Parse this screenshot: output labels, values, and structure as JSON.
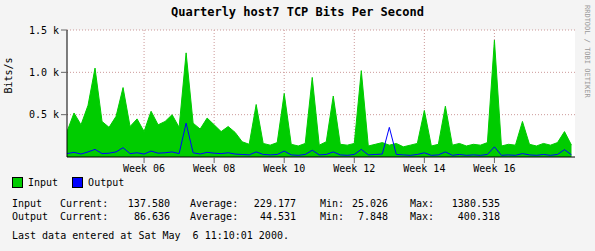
{
  "chart_data": {
    "type": "area",
    "title": "Quarterly host7 TCP Bits Per Second",
    "y_label": "Bits/s",
    "x": [
      3.8,
      4,
      4.2,
      4.4,
      4.6,
      4.8,
      5,
      5.2,
      5.4,
      5.6,
      5.8,
      6,
      6.2,
      6.4,
      6.6,
      6.8,
      7,
      7.2,
      7.4,
      7.6,
      7.8,
      8,
      8.2,
      8.4,
      8.6,
      8.8,
      9,
      9.2,
      9.4,
      9.6,
      9.8,
      10,
      10.2,
      10.4,
      10.6,
      10.8,
      11,
      11.2,
      11.4,
      11.6,
      11.8,
      12,
      12.2,
      12.4,
      12.6,
      12.8,
      13,
      13.2,
      13.4,
      13.6,
      13.8,
      14,
      14.2,
      14.4,
      14.6,
      14.8,
      15,
      15.2,
      15.4,
      15.6,
      15.8,
      16,
      16.2,
      16.4,
      16.6,
      16.8,
      17,
      17.2,
      17.4,
      17.6,
      17.8,
      18,
      18.2
    ],
    "xlim": [
      3.8,
      18.3
    ],
    "xticks": [
      {
        "value": 6,
        "label": "Week 06"
      },
      {
        "value": 8,
        "label": "Week 08"
      },
      {
        "value": 10,
        "label": "Week 10"
      },
      {
        "value": 12,
        "label": "Week 12"
      },
      {
        "value": 14,
        "label": "Week 14"
      },
      {
        "value": 16,
        "label": "Week 16"
      }
    ],
    "ylim": [
      0,
      1500
    ],
    "yticks": [
      {
        "value": 500,
        "label": "0.5 k"
      },
      {
        "value": 1000,
        "label": "1.0 k"
      },
      {
        "value": 1500,
        "label": "1.5 k"
      }
    ],
    "grid": true,
    "legend": "bottom",
    "stats_labels": [
      "Current:",
      "Average:",
      "Min:",
      "Max:"
    ],
    "series": [
      {
        "name": "Input",
        "type": "area",
        "color": "#00cc00",
        "stats": [
          "137.580",
          "229.177",
          "25.026",
          "1380.535"
        ],
        "values": [
          300,
          520,
          380,
          610,
          1050,
          420,
          350,
          480,
          820,
          360,
          450,
          300,
          540,
          380,
          420,
          500,
          350,
          1230,
          400,
          330,
          460,
          380,
          300,
          360,
          290,
          180,
          150,
          620,
          160,
          140,
          170,
          750,
          150,
          130,
          160,
          940,
          140,
          180,
          720,
          150,
          140,
          160,
          1020,
          130,
          150,
          170,
          140,
          160,
          120,
          140,
          160,
          550,
          130,
          150,
          600,
          140,
          160,
          130,
          150,
          140,
          170,
          1380,
          130,
          150,
          140,
          420,
          150,
          130,
          160,
          140,
          170,
          300,
          140
        ]
      },
      {
        "name": "Output",
        "type": "line",
        "color": "#0000ff",
        "stats": [
          "86.636",
          "44.531",
          "7.848",
          "400.318"
        ],
        "values": [
          40,
          55,
          35,
          60,
          90,
          40,
          45,
          60,
          110,
          40,
          50,
          35,
          70,
          45,
          50,
          60,
          40,
          400,
          50,
          35,
          55,
          45,
          40,
          50,
          35,
          30,
          25,
          60,
          30,
          25,
          30,
          70,
          25,
          20,
          30,
          80,
          25,
          30,
          60,
          25,
          20,
          30,
          90,
          25,
          30,
          35,
          350,
          30,
          25,
          20,
          30,
          50,
          20,
          25,
          60,
          20,
          30,
          20,
          25,
          20,
          30,
          120,
          20,
          25,
          20,
          40,
          25,
          20,
          30,
          20,
          30,
          87,
          25
        ]
      }
    ],
    "annotations": [
      "Last data entered at Sat May  6 11:10:01 2000.",
      "RRDTOOL / TOBI OETIKER"
    ]
  }
}
